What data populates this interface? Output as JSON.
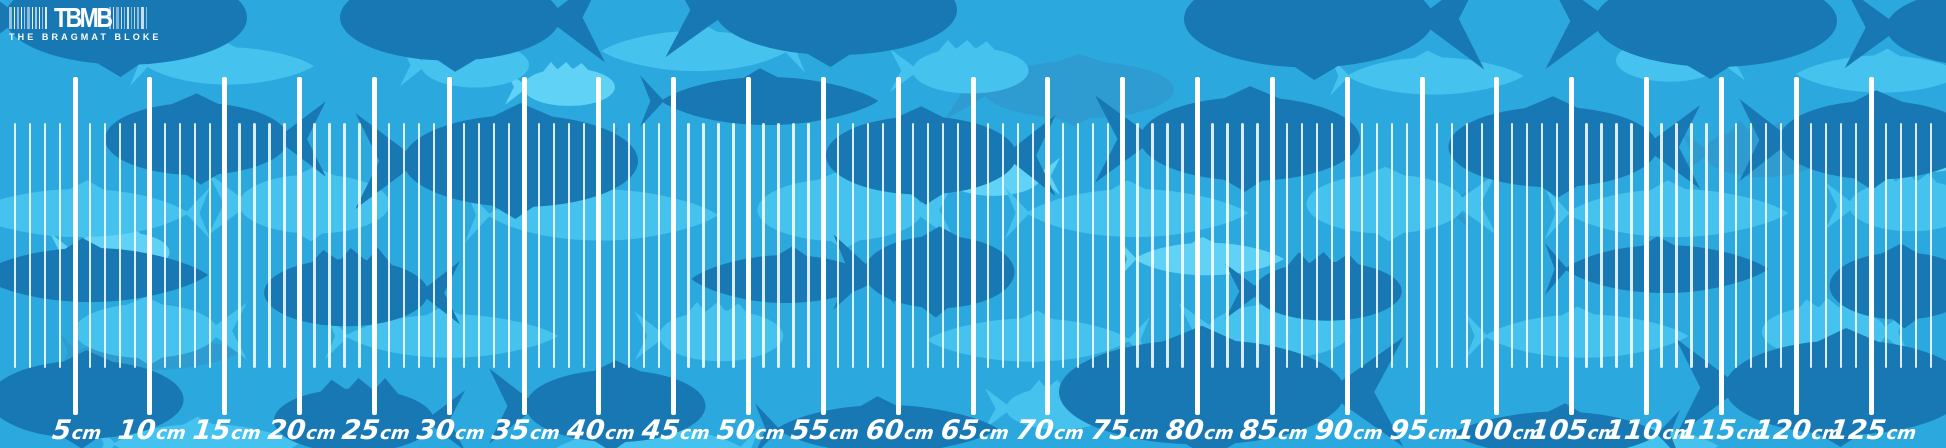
{
  "logo": {
    "acronym": "TBMB",
    "tagline": "THE BRAGMAT BLOKE"
  },
  "ruler": {
    "unit": "cm",
    "min_tick_cm": 1,
    "max_tick_cm": 129,
    "major_step_cm": 5,
    "first_label_cm": 5,
    "last_label_cm": 125,
    "label_values": [
      5,
      10,
      15,
      20,
      25,
      30,
      35,
      40,
      45,
      50,
      55,
      60,
      65,
      70,
      75,
      80,
      85,
      90,
      95,
      100,
      105,
      110,
      115,
      120,
      125
    ],
    "labels": [
      "5cm",
      "10cm",
      "15cm",
      "20cm",
      "25cm",
      "30cm",
      "35cm",
      "40cm",
      "45cm",
      "50cm",
      "55cm",
      "60cm",
      "65cm",
      "70cm",
      "75cm",
      "80cm",
      "85cm",
      "90cm",
      "95cm",
      "100cm",
      "105cm",
      "110cm",
      "115cm",
      "120cm",
      "125cm"
    ]
  },
  "colors": {
    "background": "#2BA9DF",
    "fish_dark": "#1878B3",
    "fish_mid": "#2E9CD1",
    "fish_light": "#45C3EE",
    "fish_lightest": "#60D2F6",
    "tick_major": "#FFFFFF",
    "tick_minor": "rgba(255,255,255,0.85)",
    "label_text": "#FFFFFF",
    "logo_text": "#FFFFFF"
  }
}
